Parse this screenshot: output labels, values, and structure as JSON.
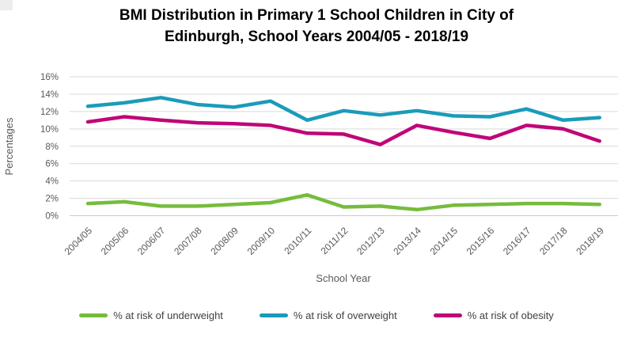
{
  "chart_data": {
    "type": "line",
    "title": "BMI Distribution in Primary 1 School Children in City of Edinburgh, School Years 2004/05 - 2018/19",
    "xlabel": "School Year",
    "ylabel": "Percentages",
    "categories": [
      "2004/05",
      "2005/06",
      "2006/07",
      "2007/08",
      "2008/09",
      "2009/10",
      "2010/11",
      "2011/12",
      "2012/13",
      "2013/14",
      "2014/15",
      "2015/16",
      "2016/17",
      "2017/18",
      "2018/19"
    ],
    "series": [
      {
        "key": "underweight",
        "name": "% at risk of underweight",
        "color": "#76bc3c",
        "values": [
          1.4,
          1.6,
          1.1,
          1.1,
          1.3,
          1.5,
          2.4,
          1.0,
          1.1,
          0.7,
          1.2,
          1.3,
          1.4,
          1.4,
          1.3
        ]
      },
      {
        "key": "overweight",
        "name": "% at risk of overweight",
        "color": "#1b9bba",
        "values": [
          12.6,
          13.0,
          13.6,
          12.8,
          12.5,
          13.2,
          11.0,
          12.1,
          11.6,
          12.1,
          11.5,
          11.4,
          12.3,
          11.0,
          11.3
        ]
      },
      {
        "key": "obesity",
        "name": "% at risk of obesity",
        "color": "#c00677",
        "values": [
          10.8,
          11.4,
          11.0,
          10.7,
          10.6,
          10.4,
          9.5,
          9.4,
          8.2,
          10.4,
          9.6,
          8.9,
          10.4,
          10.0,
          8.6
        ]
      }
    ],
    "ylim": [
      0,
      16
    ],
    "ytick_step": 2,
    "ytick_suffix": "%",
    "grid": true,
    "legend_position": "bottom",
    "gridline_color": "#d9d9d9",
    "baseline_color": "#c9c9c9",
    "axis_text_color": "#595959",
    "legend_text_color": "#404040"
  }
}
